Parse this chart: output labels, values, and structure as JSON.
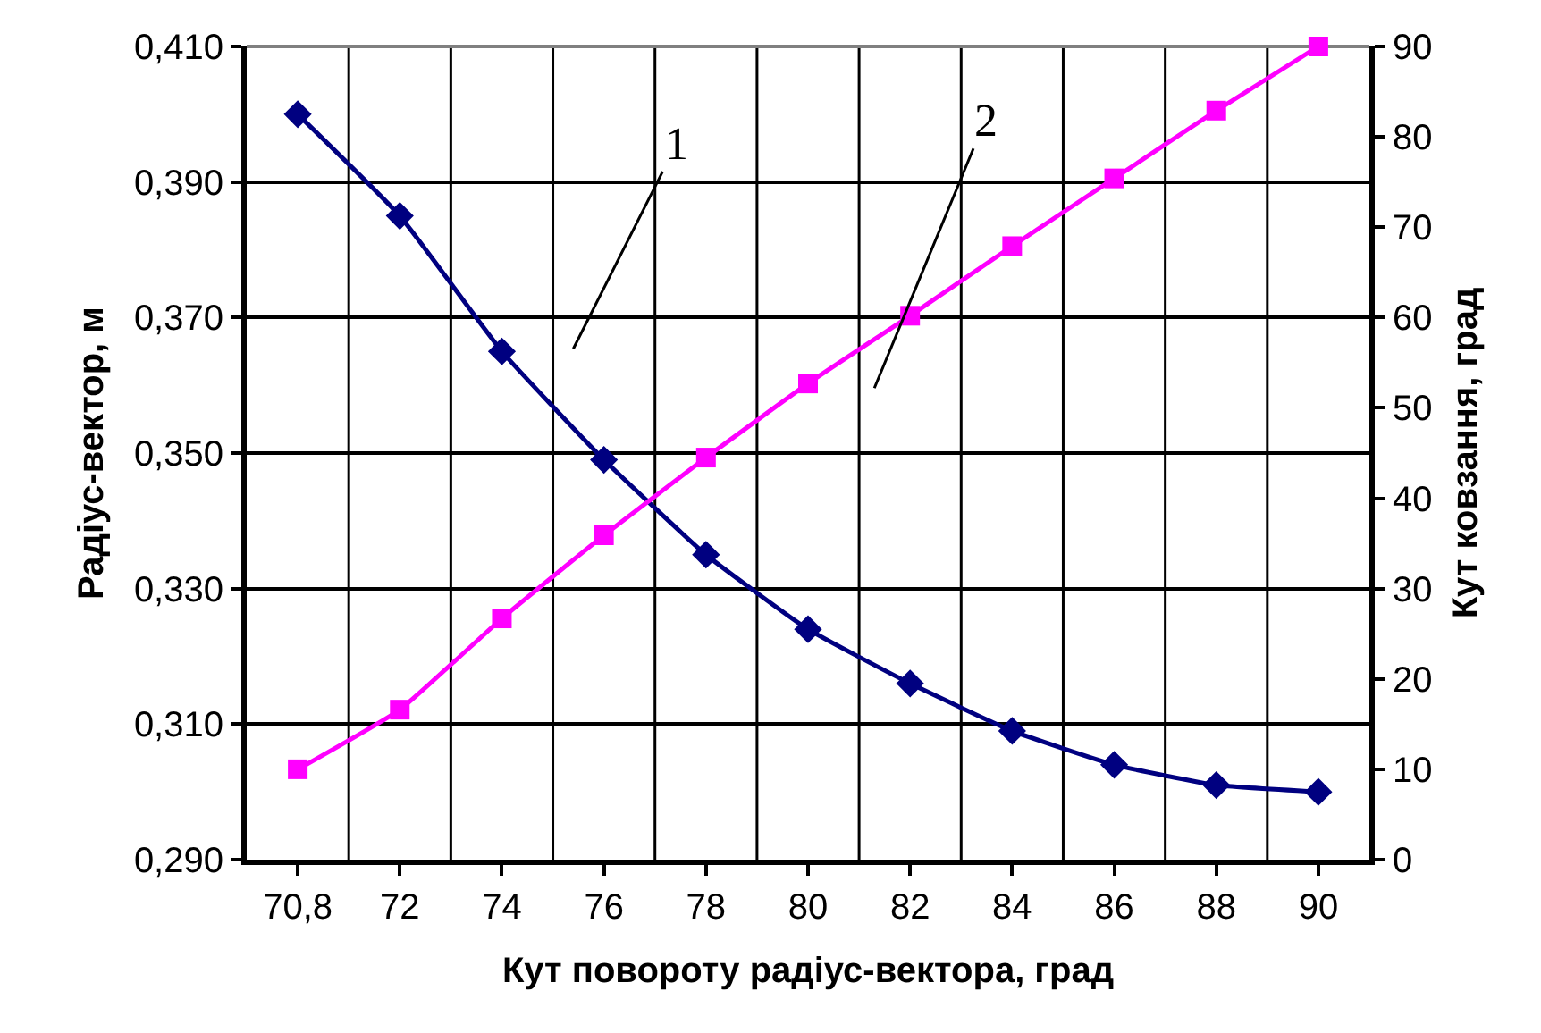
{
  "chart_data": {
    "type": "line",
    "xlabel": "Кут повороту радіус-вектора, град",
    "ylabel": "Радіус-вектор, м",
    "y2label": "Кут ковзання, град",
    "categories": [
      "70,8",
      "72",
      "74",
      "76",
      "78",
      "80",
      "82",
      "84",
      "86",
      "88",
      "90"
    ],
    "series": [
      {
        "color": "#000080",
        "marker": "diamond",
        "values": [
          0.4,
          0.385,
          0.365,
          0.349,
          0.335,
          0.324,
          0.316,
          0.309,
          0.304,
          0.301,
          0.3
        ]
      },
      {
        "color": "#ff00ff",
        "marker": "square",
        "axis": "y2",
        "values": [
          10,
          16.6,
          26.7,
          35.9,
          44.5,
          52.7,
          60.2,
          67.9,
          75.4,
          82.9,
          90
        ]
      }
    ],
    "ylim": [
      0.29,
      0.41
    ],
    "yticks": [
      {
        "value": 0.29,
        "label": "0,290"
      },
      {
        "value": 0.31,
        "label": "0,310"
      },
      {
        "value": 0.33,
        "label": "0,330"
      },
      {
        "value": 0.35,
        "label": "0,350"
      },
      {
        "value": 0.37,
        "label": "0,370"
      },
      {
        "value": 0.39,
        "label": "0,390"
      },
      {
        "value": 0.41,
        "label": "0,410"
      }
    ],
    "y2lim": [
      0,
      90
    ],
    "y2ticks": [
      0,
      10,
      20,
      30,
      40,
      50,
      60,
      70,
      80,
      90
    ],
    "annotations": [
      "1",
      "2"
    ],
    "grid": true
  }
}
